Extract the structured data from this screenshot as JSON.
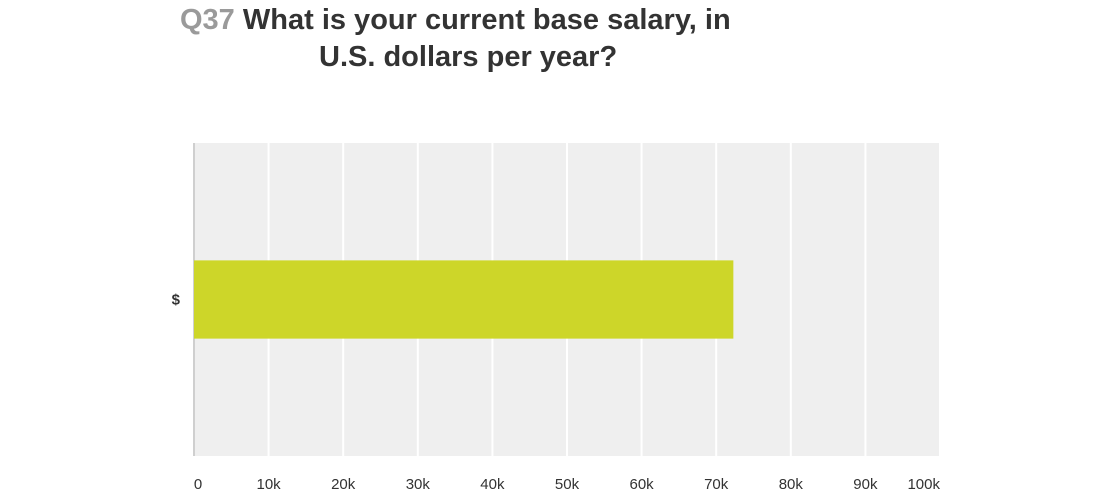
{
  "title": {
    "question_number": "Q37",
    "line1": "What is your current base salary, in",
    "line2": "U.S. dollars per year?"
  },
  "chart_data": {
    "type": "bar",
    "orientation": "horizontal",
    "categories": [
      "$"
    ],
    "values": [
      72300
    ],
    "xlim": [
      0,
      100000
    ],
    "xticks": [
      0,
      10000,
      20000,
      30000,
      40000,
      50000,
      60000,
      70000,
      80000,
      90000,
      100000
    ],
    "xtick_labels": [
      "0",
      "10k",
      "20k",
      "30k",
      "40k",
      "50k",
      "60k",
      "70k",
      "80k",
      "90k",
      "100k"
    ],
    "grid": true,
    "colors": {
      "bar": "#cdd629",
      "plot_background": "#efefef",
      "gridline": "#ffffff",
      "axis": "#cfcfcf"
    }
  }
}
